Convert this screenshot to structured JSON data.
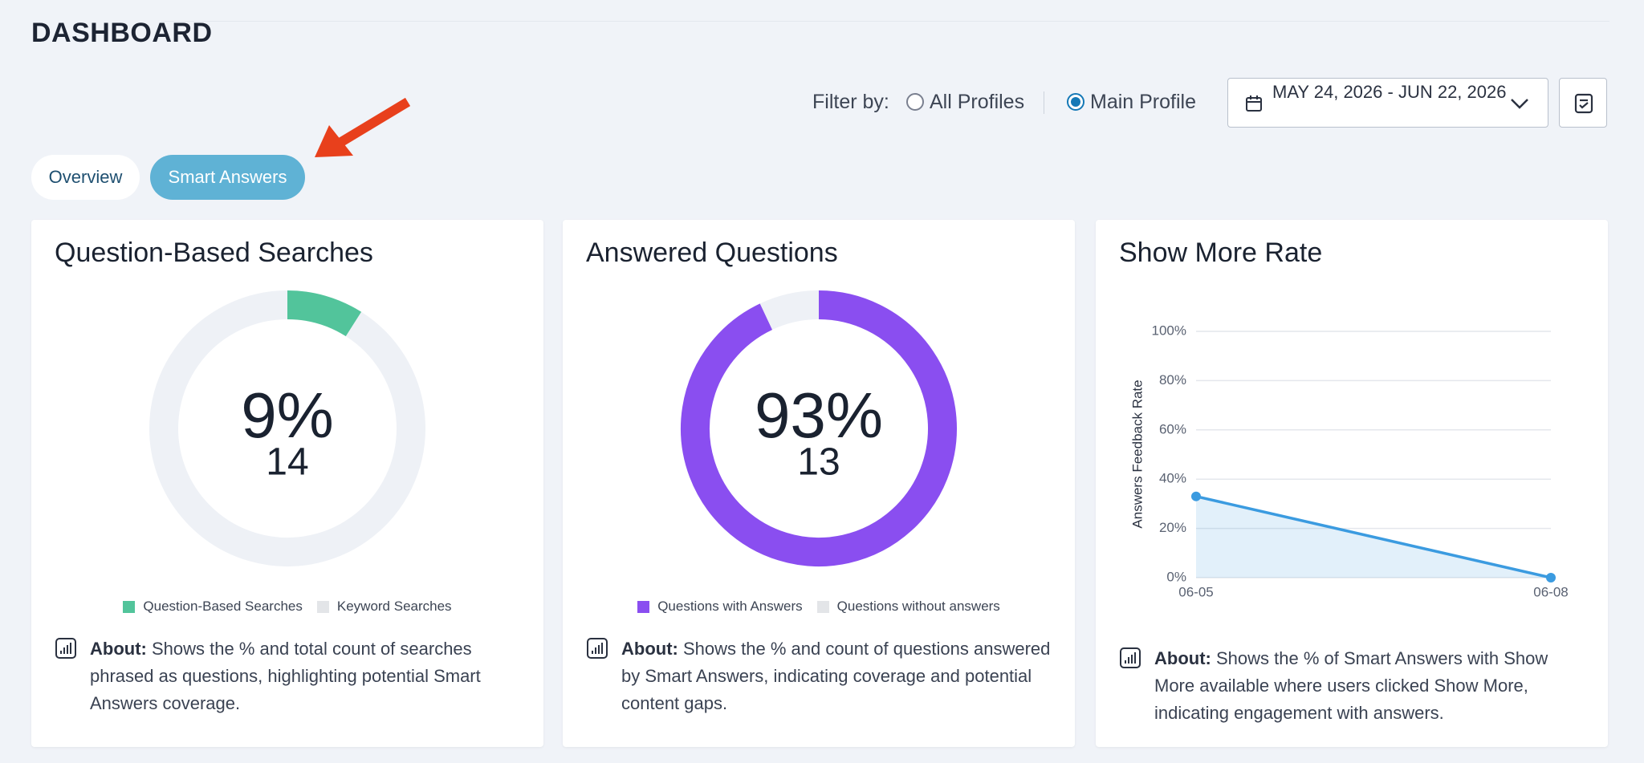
{
  "header": {
    "title": "DASHBOARD"
  },
  "filter": {
    "label": "Filter by:",
    "options": [
      "All Profiles",
      "Main Profile"
    ],
    "selected": 1,
    "date_range": "MAY 24, 2026 - JUN 22, 2026"
  },
  "tabs": {
    "items": [
      "Overview",
      "Smart Answers"
    ],
    "active": 1
  },
  "chart_data": [
    {
      "type": "donut",
      "title": "Question-Based Searches",
      "categories": [
        "Question-Based Searches",
        "Keyword Searches"
      ],
      "values": [
        9,
        91
      ],
      "value_labels": [
        "9%",
        null
      ],
      "count": 14,
      "colors": [
        "#52c49b",
        "#eef1f6"
      ]
    },
    {
      "type": "donut",
      "title": "Answered Questions",
      "categories": [
        "Questions with Answers",
        "Questions without answers"
      ],
      "values": [
        93,
        7
      ],
      "value_labels": [
        "93%",
        null
      ],
      "count": 13,
      "colors": [
        "#8a4ef0",
        "#eef1f6"
      ]
    },
    {
      "type": "line",
      "title": "Show More Rate",
      "x": [
        "06-05",
        "06-08"
      ],
      "values": [
        33,
        0
      ],
      "color": "#3b9be0",
      "area": true,
      "y_label": "Answers Feedback Rate",
      "ylim": [
        0,
        100
      ],
      "yticks": [
        {
          "value": 0,
          "label": "0%"
        },
        {
          "value": 20,
          "label": "20%"
        },
        {
          "value": 40,
          "label": "40%"
        },
        {
          "value": 60,
          "label": "60%"
        },
        {
          "value": 80,
          "label": "80%"
        },
        {
          "value": 100,
          "label": "100%"
        }
      ],
      "grid": true
    }
  ],
  "about": [
    {
      "label": "About:",
      "text": "Shows the % and total count of searches phrased as questions, highlighting potential Smart Answers coverage."
    },
    {
      "label": "About:",
      "text": "Shows the % and count of questions answered by Smart Answers, indicating coverage and potential content gaps."
    },
    {
      "label": "About:",
      "text": "Shows the % of Smart Answers with Show More available where users clicked Show More, indicating engagement with answers."
    }
  ]
}
